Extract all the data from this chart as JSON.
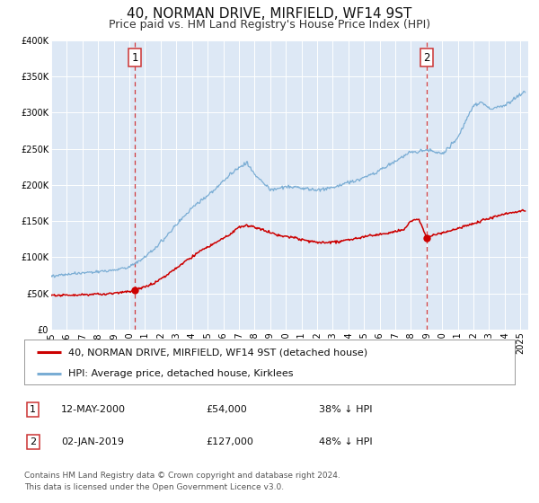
{
  "title": "40, NORMAN DRIVE, MIRFIELD, WF14 9ST",
  "subtitle": "Price paid vs. HM Land Registry's House Price Index (HPI)",
  "plot_bg_color": "#dde8f5",
  "red_color": "#cc0000",
  "blue_color": "#7aadd4",
  "grid_color": "#ffffff",
  "marker1_date_x": 2000.36,
  "marker1_y": 54000,
  "marker2_date_x": 2019.01,
  "marker2_y": 127000,
  "xmin": 1995.0,
  "xmax": 2025.5,
  "ymin": 0,
  "ymax": 400000,
  "yticks": [
    0,
    50000,
    100000,
    150000,
    200000,
    250000,
    300000,
    350000,
    400000
  ],
  "ytick_labels": [
    "£0",
    "£50K",
    "£100K",
    "£150K",
    "£200K",
    "£250K",
    "£300K",
    "£350K",
    "£400K"
  ],
  "xtick_years": [
    1995,
    1996,
    1997,
    1998,
    1999,
    2000,
    2001,
    2002,
    2003,
    2004,
    2005,
    2006,
    2007,
    2008,
    2009,
    2010,
    2011,
    2012,
    2013,
    2014,
    2015,
    2016,
    2017,
    2018,
    2019,
    2020,
    2021,
    2022,
    2023,
    2024,
    2025
  ],
  "legend_label_red": "40, NORMAN DRIVE, MIRFIELD, WF14 9ST (detached house)",
  "legend_label_blue": "HPI: Average price, detached house, Kirklees",
  "table_row1": [
    "1",
    "12-MAY-2000",
    "£54,000",
    "38% ↓ HPI"
  ],
  "table_row2": [
    "2",
    "02-JAN-2019",
    "£127,000",
    "48% ↓ HPI"
  ],
  "footer_text": "Contains HM Land Registry data © Crown copyright and database right 2024.\nThis data is licensed under the Open Government Licence v3.0.",
  "title_fontsize": 11,
  "subtitle_fontsize": 9,
  "tick_fontsize": 7,
  "legend_fontsize": 8,
  "table_fontsize": 8,
  "footer_fontsize": 6.5
}
